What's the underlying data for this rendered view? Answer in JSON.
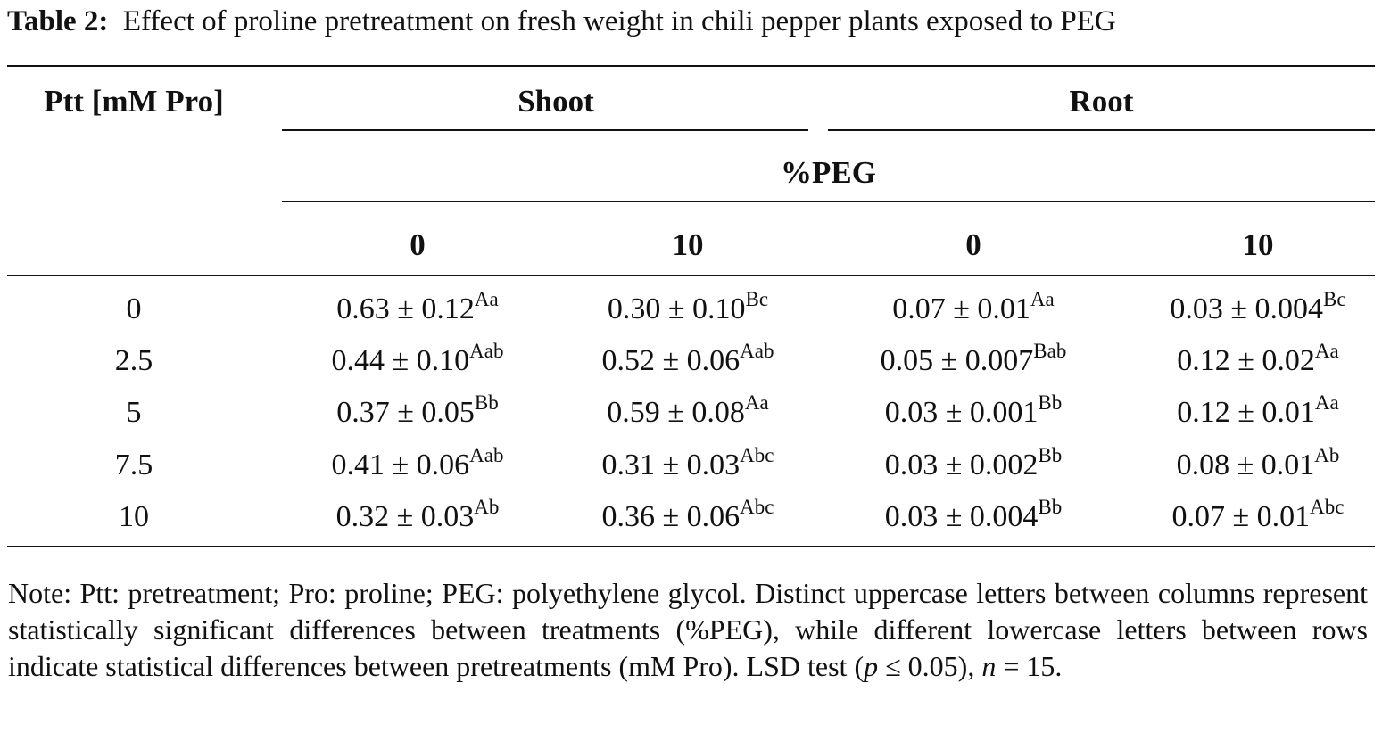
{
  "caption": {
    "label": "Table 2:",
    "text": "Effect of proline pretreatment on fresh weight in chili pepper plants exposed to PEG"
  },
  "table": {
    "row_header": "Ptt [mM Pro]",
    "groups": [
      "Shoot",
      "Root"
    ],
    "subheader": "%PEG",
    "columns": [
      "0",
      "10",
      "0",
      "10"
    ],
    "rows": [
      {
        "label": "0",
        "cells": [
          {
            "value": "0.63 ± 0.12",
            "sup": "Aa"
          },
          {
            "value": "0.30 ± 0.10",
            "sup": "Bc"
          },
          {
            "value": "0.07 ± 0.01",
            "sup": "Aa"
          },
          {
            "value": "0.03 ± 0.004",
            "sup": "Bc"
          }
        ]
      },
      {
        "label": "2.5",
        "cells": [
          {
            "value": "0.44 ± 0.10",
            "sup": "Aab"
          },
          {
            "value": "0.52 ± 0.06",
            "sup": "Aab"
          },
          {
            "value": "0.05 ± 0.007",
            "sup": "Bab"
          },
          {
            "value": "0.12 ± 0.02",
            "sup": "Aa"
          }
        ]
      },
      {
        "label": "5",
        "cells": [
          {
            "value": "0.37 ± 0.05",
            "sup": "Bb"
          },
          {
            "value": "0.59 ± 0.08",
            "sup": "Aa"
          },
          {
            "value": "0.03 ± 0.001",
            "sup": "Bb"
          },
          {
            "value": "0.12 ± 0.01",
            "sup": "Aa"
          }
        ]
      },
      {
        "label": "7.5",
        "cells": [
          {
            "value": "0.41 ± 0.06",
            "sup": "Aab"
          },
          {
            "value": "0.31 ± 0.03",
            "sup": "Abc"
          },
          {
            "value": "0.03 ± 0.002",
            "sup": "Bb"
          },
          {
            "value": "0.08 ± 0.01",
            "sup": "Ab"
          }
        ]
      },
      {
        "label": "10",
        "cells": [
          {
            "value": "0.32 ± 0.03",
            "sup": "Ab"
          },
          {
            "value": "0.36 ± 0.06",
            "sup": "Abc"
          },
          {
            "value": "0.03 ± 0.004",
            "sup": "Bb"
          },
          {
            "value": "0.07 ± 0.01",
            "sup": "Abc"
          }
        ]
      }
    ]
  },
  "note": {
    "part1": "Note: Ptt: pretreatment; Pro: proline; PEG: polyethylene glycol. Distinct uppercase letters between columns represent statistically significant differences between treatments (%PEG), while different lowercase letters between rows indicate statistical differences between pretreatments (mM Pro). LSD test (",
    "p": "p",
    "part2": " ≤ 0.05), ",
    "n": "n",
    "part3": " = 15."
  }
}
